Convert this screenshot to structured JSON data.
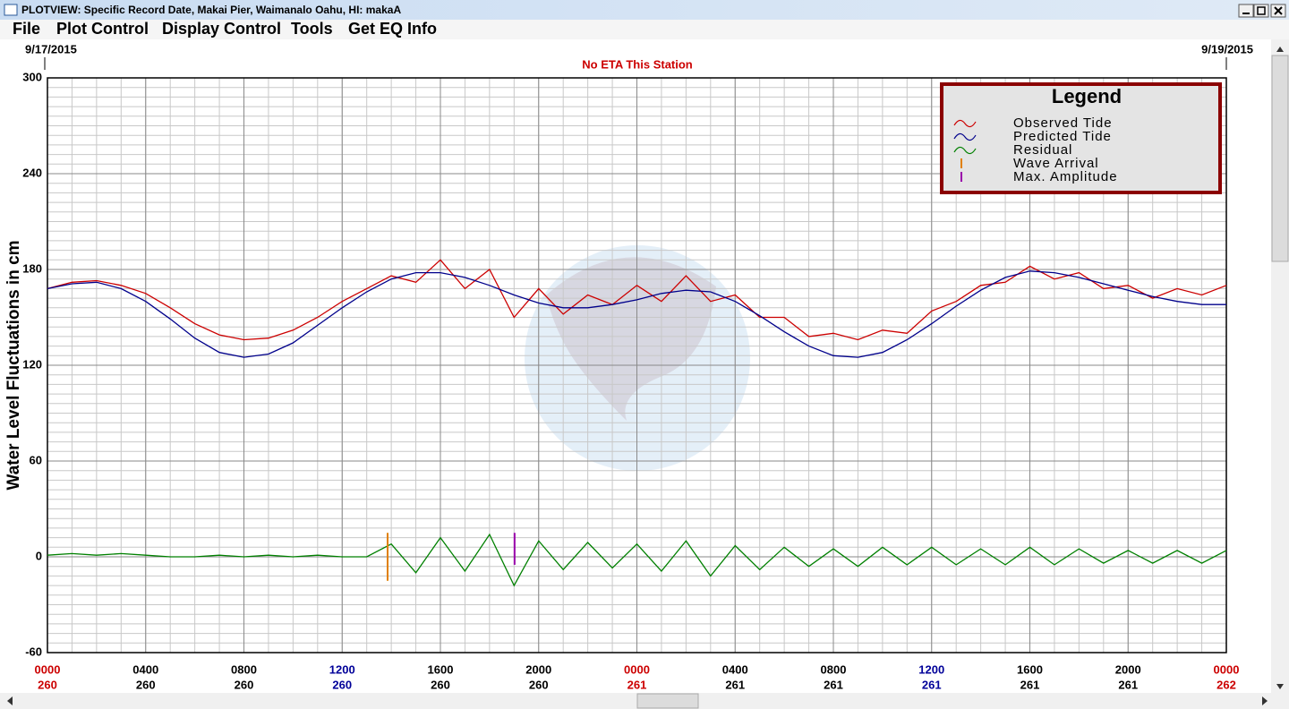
{
  "window": {
    "title": "PLOTVIEW: Specific Record Date, Makai Pier, Waimanalo Oahu, HI: makaA",
    "menu": [
      "File",
      "Plot Control",
      "Display Control",
      "Tools",
      "Get EQ Info"
    ]
  },
  "chart_data": {
    "type": "line",
    "start_date": "9/17/2015",
    "end_date": "9/19/2015",
    "annotation": "No ETA This Station",
    "y_label": "Water Level Fluctuations in cm",
    "legend_title": "Legend",
    "x": [
      0,
      1,
      2,
      3,
      4,
      5,
      6,
      7,
      8,
      9,
      10,
      11,
      12,
      13,
      14,
      15,
      16,
      17,
      18,
      19,
      20,
      21,
      22,
      23,
      24,
      25,
      26,
      27,
      28,
      29,
      30,
      31,
      32,
      33,
      34,
      35,
      36,
      37,
      38,
      39,
      40,
      41,
      42,
      43,
      44,
      45,
      46,
      47,
      48
    ],
    "series": [
      {
        "name": "Observed Tide",
        "color": "#cc0000",
        "values": [
          168,
          172,
          173,
          170,
          165,
          156,
          146,
          139,
          136,
          137,
          142,
          150,
          160,
          168,
          176,
          172,
          186,
          168,
          180,
          150,
          168,
          152,
          164,
          158,
          170,
          160,
          176,
          160,
          164,
          150,
          150,
          138,
          140,
          136,
          142,
          140,
          154,
          160,
          170,
          172,
          182,
          174,
          178,
          168,
          170,
          162,
          168,
          164,
          170
        ]
      },
      {
        "name": "Predicted Tide",
        "color": "#00008b",
        "values": [
          168,
          171,
          172,
          168,
          160,
          149,
          137,
          128,
          125,
          127,
          134,
          145,
          156,
          166,
          174,
          178,
          178,
          175,
          170,
          164,
          159,
          156,
          156,
          158,
          161,
          165,
          167,
          166,
          160,
          151,
          141,
          132,
          126,
          125,
          128,
          136,
          146,
          157,
          167,
          175,
          179,
          178,
          175,
          171,
          167,
          163,
          160,
          158,
          158
        ]
      },
      {
        "name": "Residual",
        "color": "#008000",
        "values": [
          1,
          2,
          1,
          2,
          1,
          0,
          0,
          1,
          0,
          1,
          0,
          1,
          0,
          0,
          8,
          -10,
          12,
          -9,
          14,
          -18,
          10,
          -8,
          9,
          -7,
          8,
          -9,
          10,
          -12,
          7,
          -8,
          6,
          -6,
          5,
          -6,
          6,
          -5,
          6,
          -5,
          5,
          -5,
          6,
          -5,
          5,
          -4,
          4,
          -4,
          4,
          -4,
          4
        ]
      }
    ],
    "markers": [
      {
        "name": "Wave Arrival",
        "color": "#e08000",
        "x": 13.85,
        "range": [
          -15,
          15
        ]
      },
      {
        "name": "Max. Amplitude",
        "color": "#9900aa",
        "x": 19.02,
        "range": [
          -5,
          15
        ]
      }
    ],
    "xlim": [
      0,
      48
    ],
    "xticks": [
      {
        "value": 0,
        "label": "0000",
        "day": "260",
        "color": "#cc0000"
      },
      {
        "value": 4,
        "label": "0400",
        "day": "260",
        "color": "#000000"
      },
      {
        "value": 8,
        "label": "0800",
        "day": "260",
        "color": "#000000"
      },
      {
        "value": 12,
        "label": "1200",
        "day": "260",
        "color": "#000099"
      },
      {
        "value": 16,
        "label": "1600",
        "day": "260",
        "color": "#000000"
      },
      {
        "value": 20,
        "label": "2000",
        "day": "260",
        "color": "#000000"
      },
      {
        "value": 24,
        "label": "0000",
        "day": "261",
        "color": "#cc0000"
      },
      {
        "value": 28,
        "label": "0400",
        "day": "261",
        "color": "#000000"
      },
      {
        "value": 32,
        "label": "0800",
        "day": "261",
        "color": "#000000"
      },
      {
        "value": 36,
        "label": "1200",
        "day": "261",
        "color": "#000099"
      },
      {
        "value": 40,
        "label": "1600",
        "day": "261",
        "color": "#000000"
      },
      {
        "value": 44,
        "label": "2000",
        "day": "261",
        "color": "#000000"
      },
      {
        "value": 48,
        "label": "0000",
        "day": "262",
        "color": "#cc0000"
      }
    ],
    "ylim": [
      -60,
      300
    ],
    "yticks": [
      -60,
      0,
      60,
      120,
      180,
      240,
      300
    ],
    "grid": true
  }
}
